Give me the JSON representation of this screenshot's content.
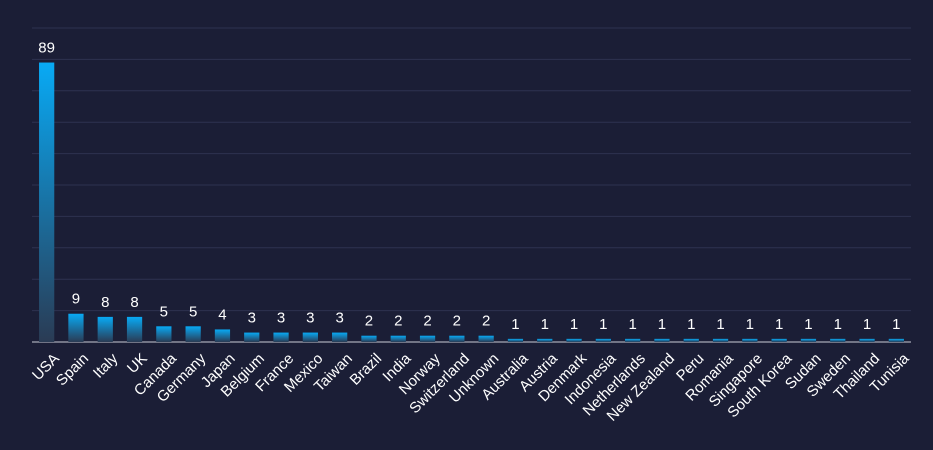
{
  "chart_data": {
    "type": "bar",
    "categories": [
      "USA",
      "Spain",
      "Italy",
      "UK",
      "Canada",
      "Germany",
      "Japan",
      "Belgium",
      "France",
      "Mexico",
      "Taiwan",
      "Brazil",
      "India",
      "Norway",
      "Switzerland",
      "Unknown",
      "Australia",
      "Austria",
      "Denmark",
      "Indonesia",
      "Netherlands",
      "New Zealand",
      "Peru",
      "Romania",
      "Singapore",
      "South Korea",
      "Sudan",
      "Sweden",
      "Thailand",
      "Tunisia"
    ],
    "values": [
      89,
      9,
      8,
      8,
      5,
      5,
      4,
      3,
      3,
      3,
      3,
      2,
      2,
      2,
      2,
      2,
      1,
      1,
      1,
      1,
      1,
      1,
      1,
      1,
      1,
      1,
      1,
      1,
      1,
      1
    ],
    "ylim": [
      0,
      100
    ],
    "grid": true,
    "colors": {
      "background": "#1b1e36",
      "bar_top": "#08aaf5",
      "bar_bottom": "#2a3b54",
      "grid": "#2e3250",
      "text": "#ffffff"
    }
  }
}
